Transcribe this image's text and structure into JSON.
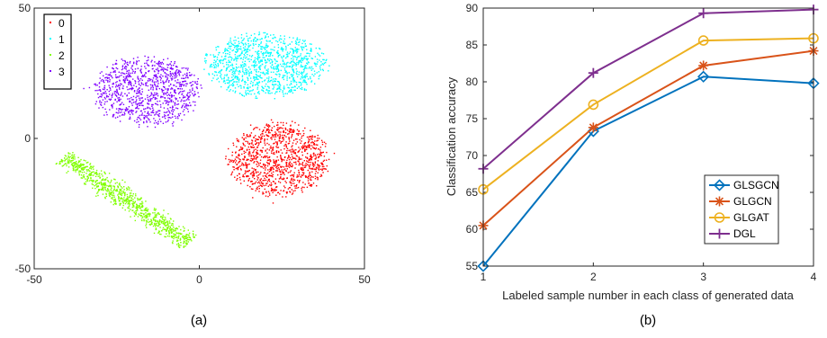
{
  "chart_data": [
    {
      "type": "scatter",
      "caption": "(a)",
      "xlim": [
        -50,
        50
      ],
      "ylim": [
        -50,
        50
      ],
      "x_ticks": [
        -50,
        0,
        50
      ],
      "y_ticks": [
        -50,
        0,
        50
      ],
      "legend_position": "top-left",
      "series": [
        {
          "name": "0",
          "color": "#ff0000",
          "cluster": {
            "shape": "blob",
            "cx": 24,
            "cy": -8,
            "rx": 15,
            "ry": 14,
            "count": 1100
          }
        },
        {
          "name": "1",
          "color": "#00ffff",
          "cluster": {
            "shape": "blob",
            "cx": 20,
            "cy": 28,
            "rx": 18,
            "ry": 12,
            "count": 1100
          }
        },
        {
          "name": "2",
          "color": "#80ff00",
          "cluster": {
            "shape": "band",
            "from": [
              -41,
              -7
            ],
            "to": [
              -3,
              -40
            ],
            "width": 9,
            "count": 900
          }
        },
        {
          "name": "3",
          "color": "#8000ff",
          "cluster": {
            "shape": "blob",
            "cx": -16,
            "cy": 18,
            "rx": 16,
            "ry": 13,
            "count": 1000
          }
        }
      ]
    },
    {
      "type": "line",
      "caption": "(b)",
      "xlabel": "Labeled sample number in each class of generated data",
      "ylabel": "Classification accuracy",
      "x": [
        1,
        2,
        3,
        4
      ],
      "xlim": [
        1,
        4
      ],
      "ylim": [
        55,
        90
      ],
      "y_ticks": [
        55,
        60,
        65,
        70,
        75,
        80,
        85,
        90
      ],
      "legend_position": "bottom-right",
      "series": [
        {
          "name": "GLSGCN",
          "values": [
            55.0,
            73.3,
            80.7,
            79.8
          ],
          "color": "#0072bd",
          "marker": "diamond"
        },
        {
          "name": "GLGCN",
          "values": [
            60.5,
            73.8,
            82.2,
            84.2
          ],
          "color": "#d95319",
          "marker": "asterisk"
        },
        {
          "name": "GLGAT",
          "values": [
            65.4,
            76.9,
            85.6,
            85.9
          ],
          "color": "#edb120",
          "marker": "circle"
        },
        {
          "name": "DGL",
          "values": [
            68.2,
            81.2,
            89.3,
            89.8
          ],
          "color": "#7e2f8e",
          "marker": "plus"
        }
      ]
    }
  ]
}
